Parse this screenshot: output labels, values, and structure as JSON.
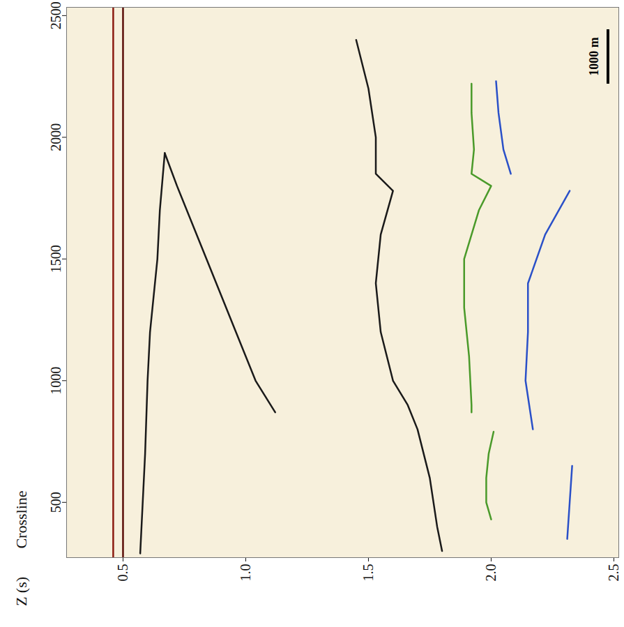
{
  "chart_data": {
    "type": "line",
    "x_label": "Z (s)",
    "y_label": "Crossline",
    "xlim": [
      0.27,
      2.52
    ],
    "ylim": [
      273,
      2534
    ],
    "xticks": [
      0.5,
      {
        "value": 1,
        "label": "1.0"
      },
      1.5,
      {
        "value": 2,
        "label": "2.0"
      },
      2.5
    ],
    "yticks": [
      500,
      1000,
      1500,
      2000,
      2500
    ],
    "grid": false,
    "series": [
      {
        "color": "#8b1a10",
        "crossline": [
          273,
          2534
        ],
        "z": [
          0.46,
          0.46
        ]
      },
      {
        "color": "#5a0d08",
        "crossline": [
          273,
          2534
        ],
        "z": [
          0.5,
          0.5
        ]
      },
      {
        "color": "#1a1a1a",
        "crossline": [
          1935,
          1800,
          1500,
          1200,
          1000,
          870
        ],
        "z": [
          0.67,
          0.72,
          0.84,
          0.96,
          1.04,
          1.12
        ]
      },
      {
        "color": "#1a1a1a",
        "crossline": [
          1935,
          1700,
          1500,
          1200,
          1000,
          700,
          290
        ],
        "z": [
          0.67,
          0.65,
          0.64,
          0.61,
          0.6,
          0.59,
          0.57
        ]
      },
      {
        "color": "#1a1a1a",
        "crossline": [
          2400,
          2200,
          2000,
          1850,
          1780,
          1600,
          1400,
          1200,
          1000,
          900,
          800,
          600,
          400,
          300
        ],
        "z": [
          1.45,
          1.5,
          1.53,
          1.53,
          1.6,
          1.55,
          1.53,
          1.55,
          1.6,
          1.66,
          1.7,
          1.75,
          1.78,
          1.8
        ]
      },
      {
        "color": "#4a9a2a",
        "crossline": [
          2220,
          2100,
          1950,
          1850,
          1800,
          1700,
          1500,
          1300,
          1100,
          900,
          870,
          null,
          790,
          700,
          600,
          500,
          430
        ],
        "z": [
          1.92,
          1.92,
          1.93,
          1.92,
          2.0,
          1.95,
          1.89,
          1.89,
          1.91,
          1.92,
          1.92,
          null,
          2.01,
          1.99,
          1.98,
          1.98,
          2.0
        ]
      },
      {
        "color": "#2a50c8",
        "crossline": [
          2230,
          2100,
          1950,
          1850,
          null,
          1780,
          1600,
          1400,
          1200,
          1000,
          800,
          null,
          650,
          500,
          350
        ],
        "z": [
          2.02,
          2.03,
          2.05,
          2.08,
          null,
          2.32,
          2.22,
          2.15,
          2.15,
          2.14,
          2.17,
          null,
          2.33,
          2.32,
          2.31
        ]
      }
    ],
    "annotations": [
      {
        "text": "1000 m"
      }
    ]
  }
}
